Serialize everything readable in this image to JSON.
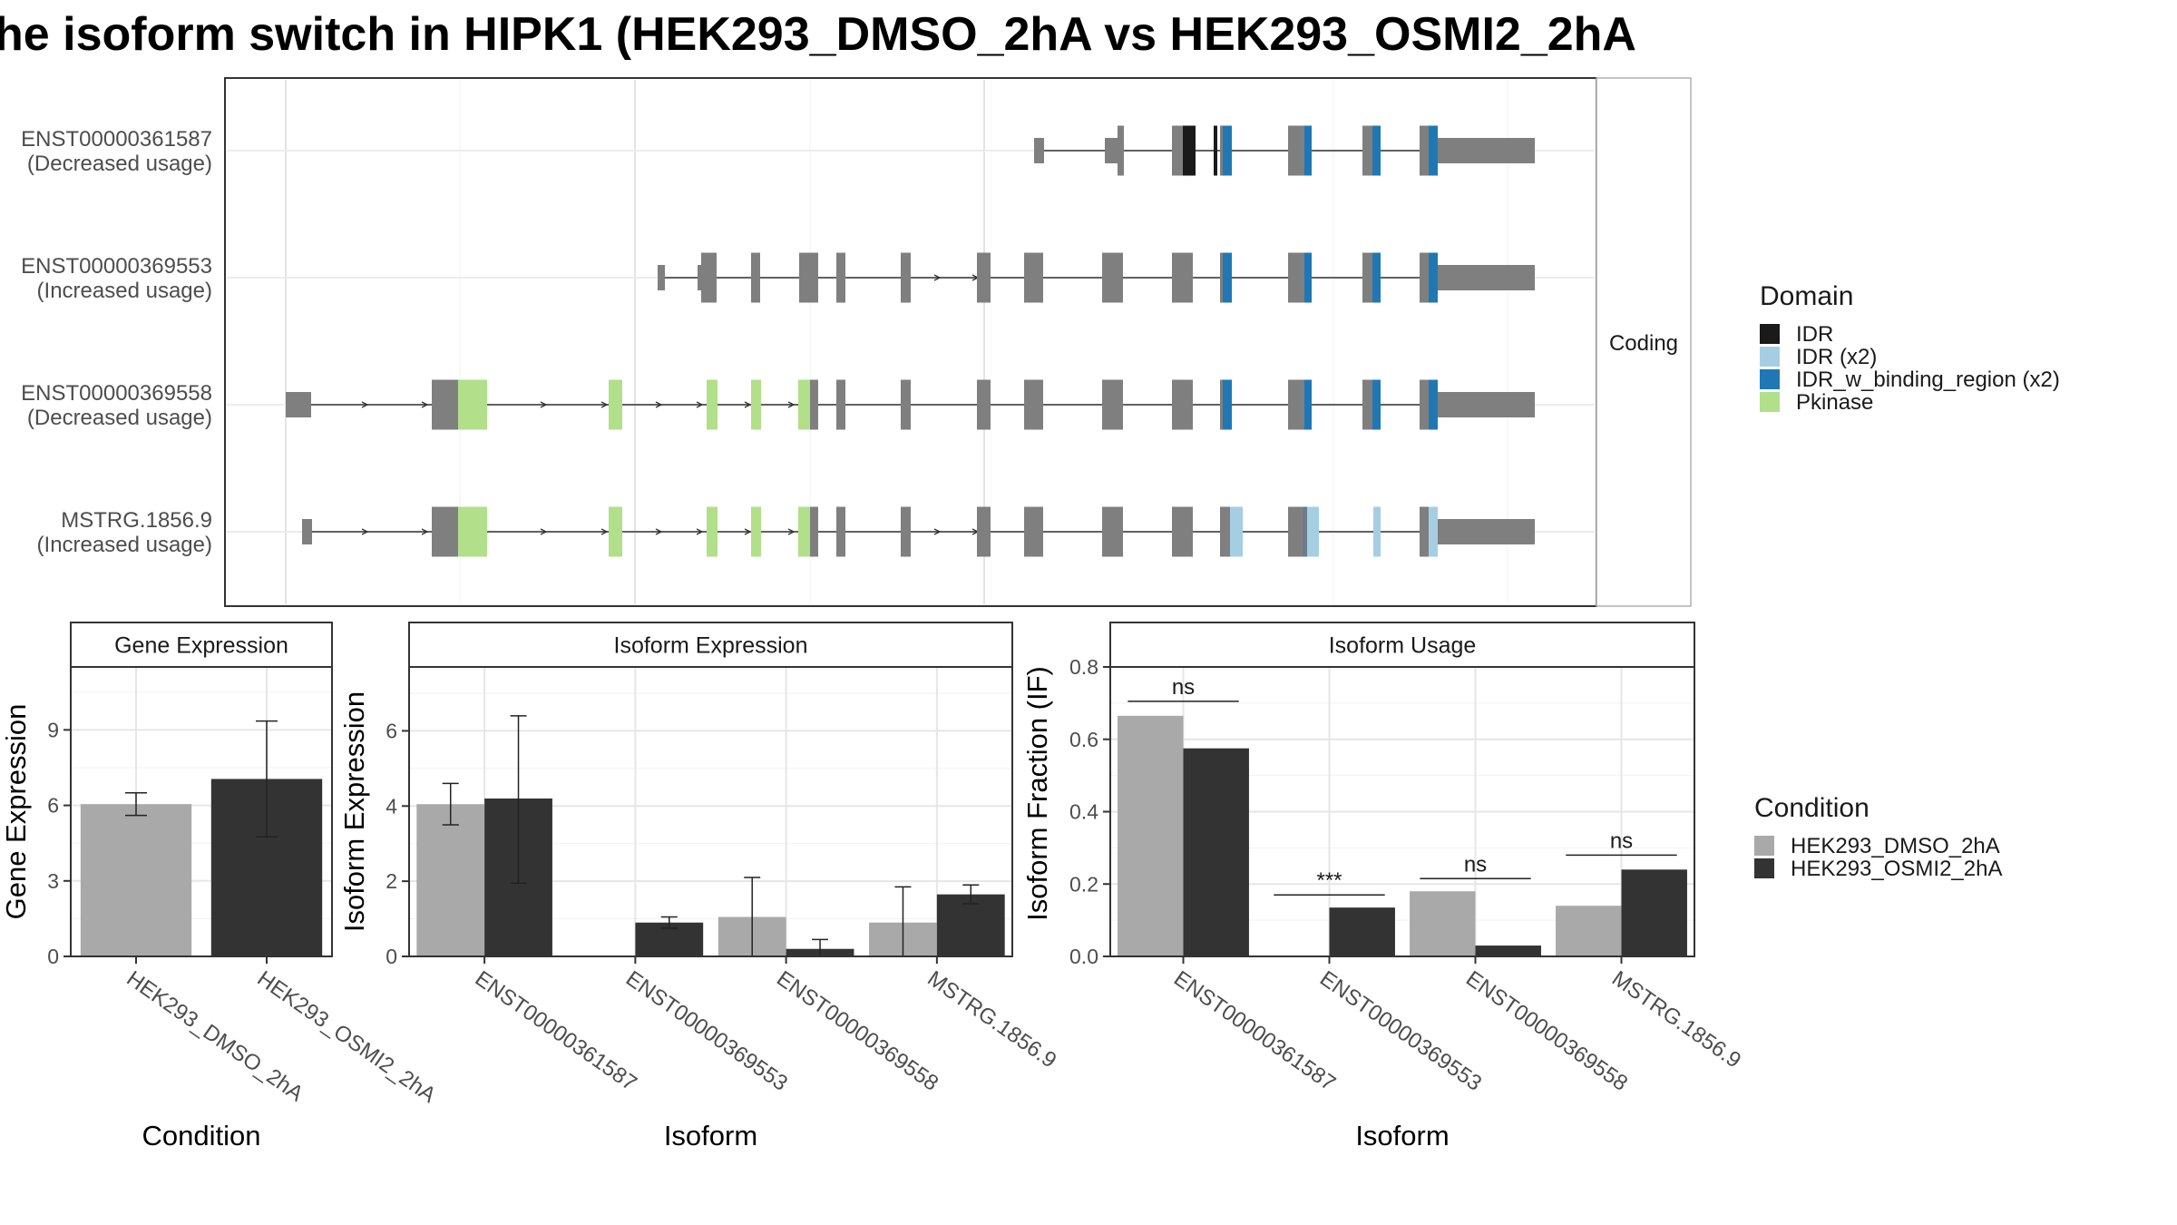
{
  "title": "he isoform switch in HIPK1 (HEK293_DMSO_2hA vs HEK293_OSMI2_2hA",
  "structure_panel": {
    "strip_label": "Coding",
    "isoforms": [
      {
        "id": "ENST00000361587",
        "usage": "(Decreased usage)"
      },
      {
        "id": "ENST00000369553",
        "usage": "(Increased usage)"
      },
      {
        "id": "ENST00000369558",
        "usage": "(Decreased usage)"
      },
      {
        "id": "MSTRG.1856.9",
        "usage": "(Increased usage)"
      }
    ]
  },
  "legends": {
    "domain": {
      "title": "Domain",
      "items": [
        {
          "label": "IDR",
          "color": "#1a1a1a"
        },
        {
          "label": "IDR (x2)",
          "color": "#a6cee3"
        },
        {
          "label": "IDR_w_binding_region (x2)",
          "color": "#1f78b4"
        },
        {
          "label": "Pkinase",
          "color": "#b2df8a"
        }
      ]
    },
    "condition": {
      "title": "Condition",
      "items": [
        {
          "label": "HEK293_DMSO_2hA",
          "color": "#a9a9a9"
        },
        {
          "label": "HEK293_OSMI2_2hA",
          "color": "#333333"
        }
      ]
    }
  },
  "chart_data": [
    {
      "type": "bar",
      "title": "Gene Expression",
      "xlabel": "Condition",
      "ylabel": "Gene Expression",
      "ylim": [
        0,
        11.5
      ],
      "yticks": [
        0,
        3,
        6,
        9
      ],
      "categories": [
        "HEK293_DMSO_2hA",
        "HEK293_OSMI2_2hA"
      ],
      "values": [
        6.05,
        7.05
      ],
      "errors": [
        [
          5.6,
          6.5
        ],
        [
          4.75,
          9.35
        ]
      ],
      "colors": [
        "#a9a9a9",
        "#333333"
      ],
      "grid": true
    },
    {
      "type": "bar",
      "title": "Isoform Expression",
      "xlabel": "Isoform",
      "ylabel": "Isoform Expression",
      "ylim": [
        0,
        7.7
      ],
      "yticks": [
        0,
        2,
        4,
        6
      ],
      "categories": [
        "ENST00000361587",
        "ENST00000369553",
        "ENST00000369558",
        "MSTRG.1856.9"
      ],
      "series": [
        {
          "name": "HEK293_DMSO_2hA",
          "values": [
            4.05,
            0.0,
            1.05,
            0.9
          ],
          "errors": [
            [
              3.5,
              4.6
            ],
            [
              0,
              0
            ],
            [
              0,
              2.1
            ],
            [
              0,
              1.85
            ]
          ],
          "color": "#a9a9a9"
        },
        {
          "name": "HEK293_OSMI2_2hA",
          "values": [
            4.2,
            0.9,
            0.2,
            1.65
          ],
          "errors": [
            [
              1.95,
              6.4
            ],
            [
              0.75,
              1.05
            ],
            [
              0,
              0.45
            ],
            [
              1.4,
              1.9
            ]
          ],
          "color": "#333333"
        }
      ],
      "grid": true
    },
    {
      "type": "bar",
      "title": "Isoform Usage",
      "xlabel": "Isoform",
      "ylabel": "Isoform Fraction (IF)",
      "ylim": [
        0,
        0.8
      ],
      "yticks": [
        0.0,
        0.2,
        0.4,
        0.6,
        0.8
      ],
      "ytick_labels": [
        "0.0",
        "0.2",
        "0.4",
        "0.6",
        "0.8"
      ],
      "categories": [
        "ENST00000361587",
        "ENST00000369553",
        "ENST00000369558",
        "MSTRG.1856.9"
      ],
      "series": [
        {
          "name": "HEK293_DMSO_2hA",
          "values": [
            0.665,
            0.0,
            0.18,
            0.14
          ],
          "color": "#a9a9a9"
        },
        {
          "name": "HEK293_OSMI2_2hA",
          "values": [
            0.575,
            0.135,
            0.03,
            0.24
          ],
          "color": "#333333"
        }
      ],
      "significance": [
        {
          "label": "ns",
          "y": 0.705
        },
        {
          "label": "***",
          "y": 0.17
        },
        {
          "label": "ns",
          "y": 0.215
        },
        {
          "label": "ns",
          "y": 0.28
        }
      ],
      "grid": true
    }
  ]
}
